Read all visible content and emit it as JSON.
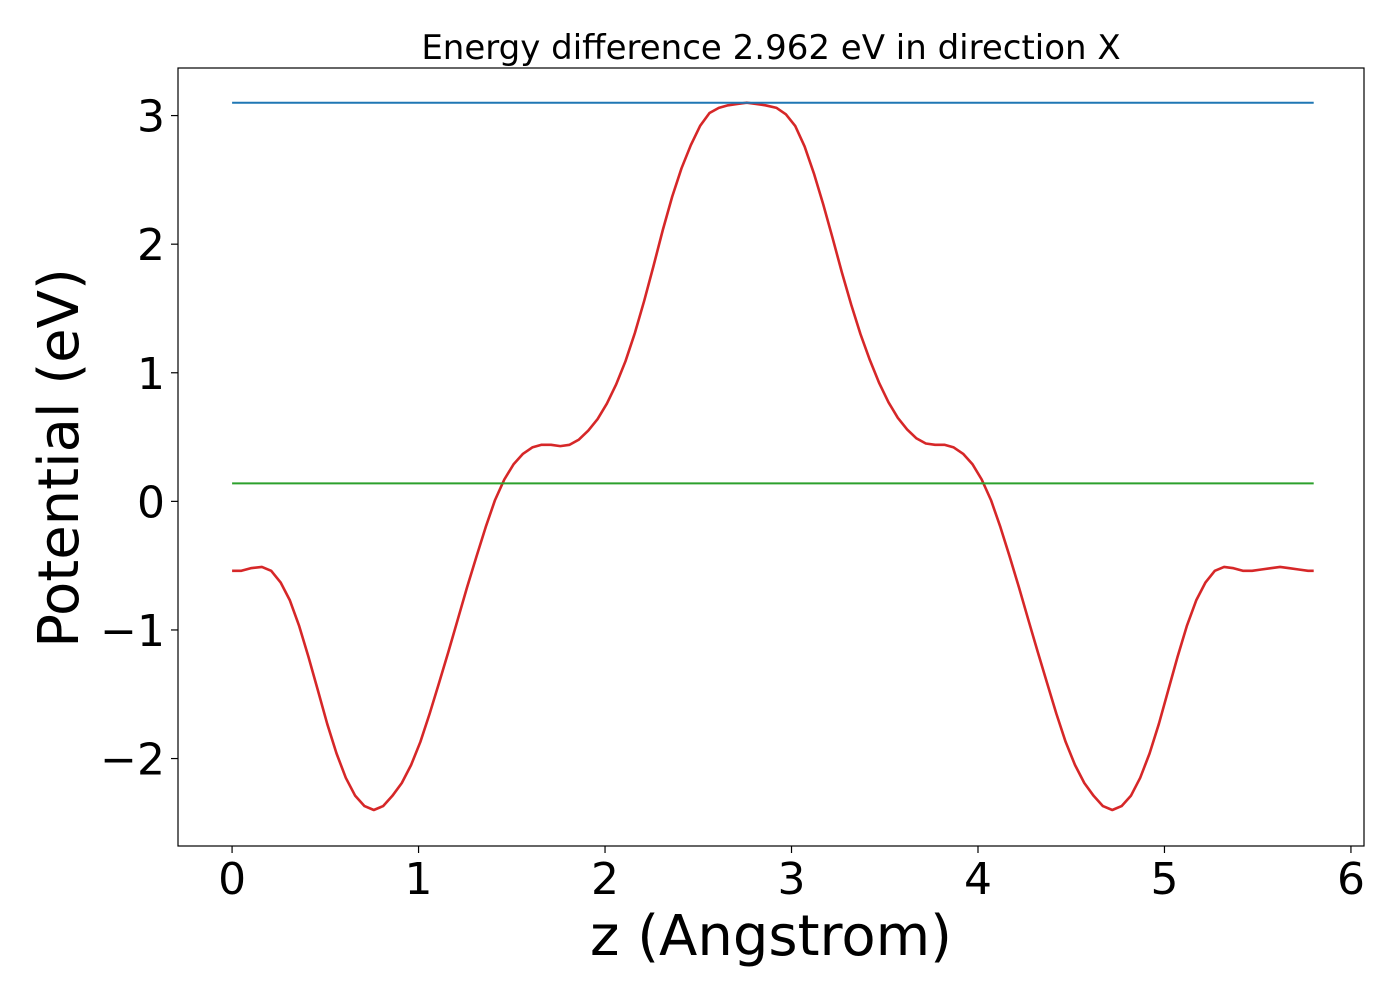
{
  "chart_data": {
    "type": "line",
    "title": "Energy difference 2.962 eV in direction X",
    "xlabel": "z (Angstrom)",
    "ylabel": "Potential (eV)",
    "xlim": [
      -0.29,
      6.07
    ],
    "ylim": [
      -2.68,
      3.37
    ],
    "xticks": [
      0,
      1,
      2,
      3,
      4,
      5,
      6
    ],
    "xtick_labels": [
      "0",
      "1",
      "2",
      "3",
      "4",
      "5",
      "6"
    ],
    "yticks": [
      -2,
      -1,
      0,
      1,
      2,
      3
    ],
    "ytick_labels": [
      "−2",
      "−1",
      "0",
      "1",
      "2",
      "3"
    ],
    "grid": false,
    "series": [
      {
        "name": "",
        "color": "#d62728",
        "x": [
          0.0,
          0.05,
          0.1,
          0.16,
          0.21,
          0.26,
          0.31,
          0.36,
          0.41,
          0.46,
          0.51,
          0.56,
          0.61,
          0.66,
          0.71,
          0.76,
          0.81,
          0.86,
          0.91,
          0.96,
          1.01,
          1.06,
          1.11,
          1.16,
          1.21,
          1.26,
          1.31,
          1.36,
          1.41,
          1.46,
          1.51,
          1.56,
          1.61,
          1.66,
          1.71,
          1.76,
          1.81,
          1.86,
          1.91,
          1.96,
          2.01,
          2.06,
          2.11,
          2.16,
          2.21,
          2.26,
          2.31,
          2.36,
          2.41,
          2.46,
          2.51,
          2.56,
          2.61,
          2.66,
          2.71,
          2.76,
          2.81,
          2.86,
          2.92,
          2.97,
          3.02,
          3.07,
          3.12,
          3.17,
          3.22,
          3.27,
          3.32,
          3.37,
          3.42,
          3.47,
          3.52,
          3.57,
          3.62,
          3.67,
          3.72,
          3.77,
          3.82,
          3.87,
          3.92,
          3.97,
          4.02,
          4.07,
          4.12,
          4.17,
          4.22,
          4.27,
          4.32,
          4.37,
          4.42,
          4.47,
          4.52,
          4.57,
          4.62,
          4.67,
          4.72,
          4.77,
          4.82,
          4.87,
          4.92,
          4.97,
          5.02,
          5.07,
          5.12,
          5.17,
          5.22,
          5.27,
          5.32,
          5.37,
          5.42,
          5.47,
          5.52,
          5.57,
          5.62,
          5.67,
          5.72,
          5.77,
          5.8
        ],
        "y": [
          -0.54,
          -0.54,
          -0.52,
          -0.51,
          -0.54,
          -0.63,
          -0.77,
          -0.97,
          -1.21,
          -1.47,
          -1.73,
          -1.96,
          -2.15,
          -2.29,
          -2.37,
          -2.4,
          -2.37,
          -2.29,
          -2.19,
          -2.05,
          -1.87,
          -1.65,
          -1.41,
          -1.17,
          -0.92,
          -0.67,
          -0.43,
          -0.2,
          0.01,
          0.17,
          0.29,
          0.37,
          0.42,
          0.44,
          0.44,
          0.43,
          0.44,
          0.48,
          0.55,
          0.64,
          0.76,
          0.91,
          1.09,
          1.31,
          1.56,
          1.83,
          2.11,
          2.37,
          2.59,
          2.77,
          2.92,
          3.02,
          3.06,
          3.08,
          3.09,
          3.1,
          3.09,
          3.08,
          3.06,
          3.01,
          2.92,
          2.76,
          2.55,
          2.31,
          2.05,
          1.78,
          1.53,
          1.3,
          1.1,
          0.92,
          0.77,
          0.65,
          0.56,
          0.49,
          0.45,
          0.44,
          0.44,
          0.42,
          0.37,
          0.29,
          0.17,
          0.01,
          -0.2,
          -0.43,
          -0.67,
          -0.92,
          -1.17,
          -1.41,
          -1.65,
          -1.87,
          -2.05,
          -2.19,
          -2.29,
          -2.37,
          -2.4,
          -2.37,
          -2.29,
          -2.15,
          -1.96,
          -1.73,
          -1.47,
          -1.21,
          -0.97,
          -0.77,
          -0.63,
          -0.54,
          -0.51,
          -0.52,
          -0.54,
          -0.54,
          -0.53,
          -0.52,
          -0.51,
          -0.52,
          -0.53,
          -0.54,
          -0.54
        ]
      },
      {
        "name": "",
        "color": "#2ca02c",
        "x": [
          0.0,
          5.8
        ],
        "y": [
          0.14,
          0.14
        ]
      },
      {
        "name": "",
        "color": "#1f77b4",
        "x": [
          0.0,
          5.8
        ],
        "y": [
          3.1,
          3.1
        ]
      }
    ]
  }
}
